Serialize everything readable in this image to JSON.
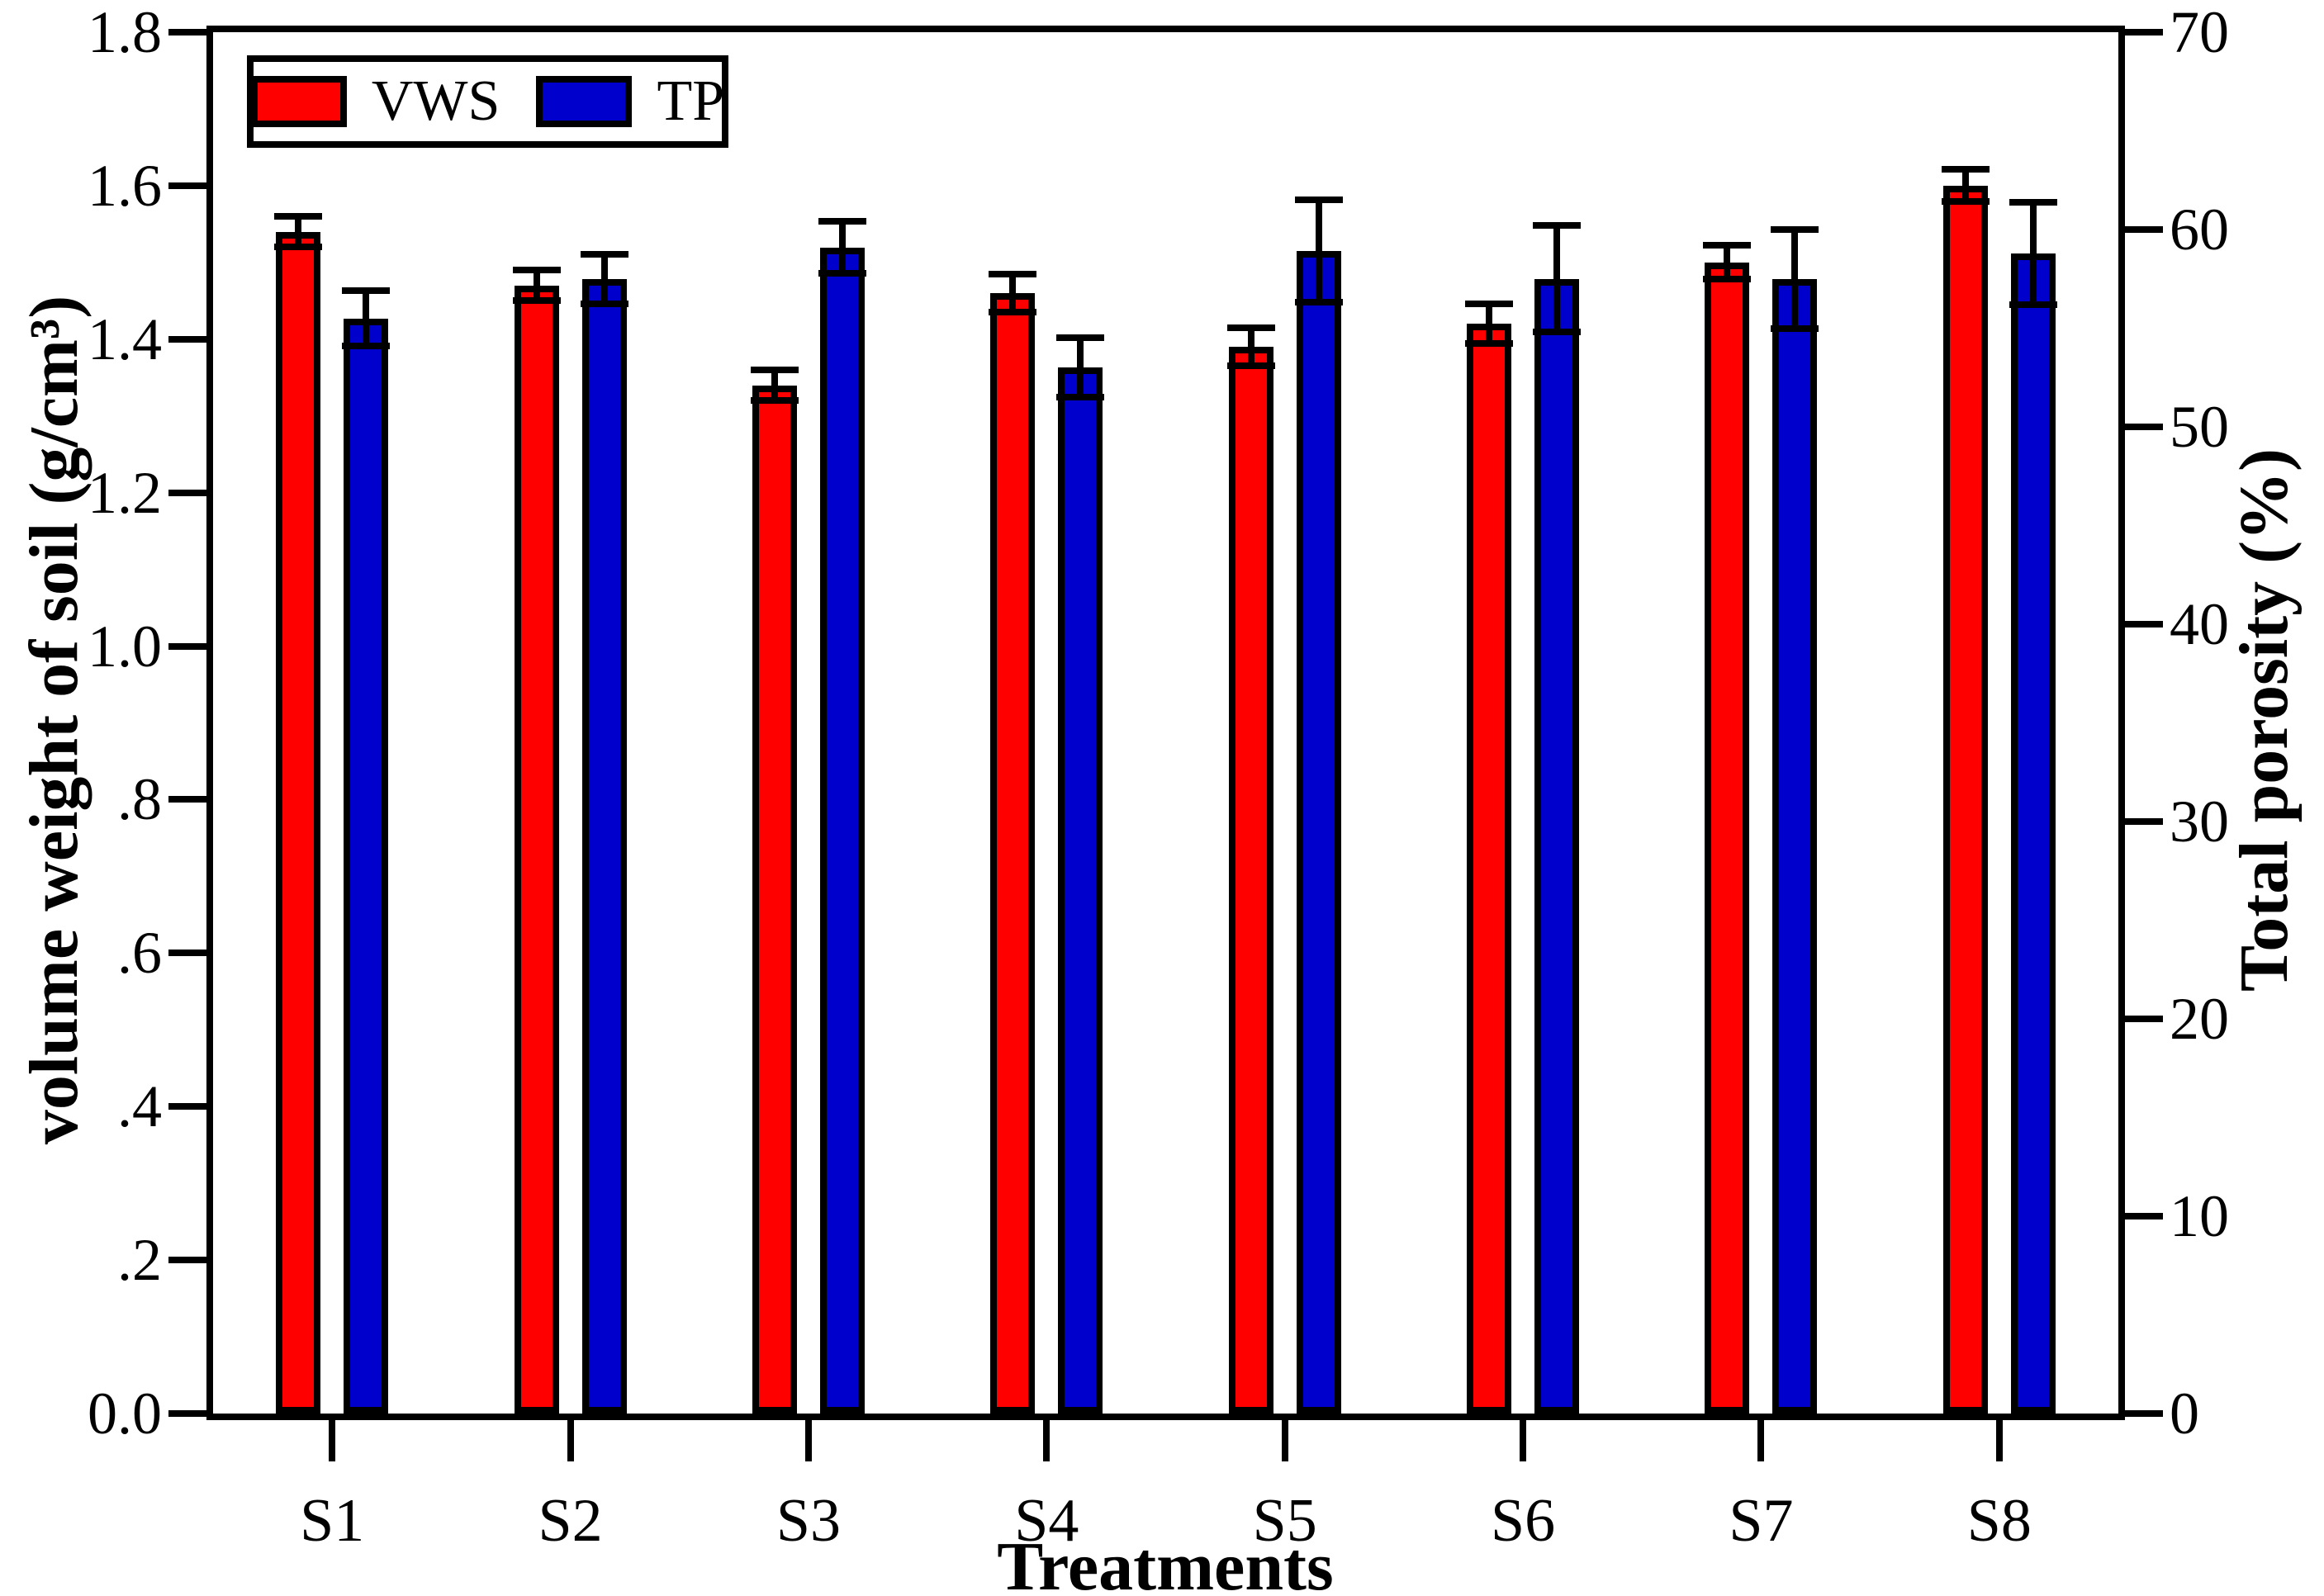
{
  "chart_data": {
    "type": "bar",
    "title": "",
    "categories": [
      "S1",
      "S2",
      "S3",
      "S4",
      "S5",
      "S6",
      "S7",
      "S8"
    ],
    "series": [
      {
        "name": "VWS",
        "axis": "left",
        "unit": "g/cm3",
        "color": "#ff0000",
        "values": [
          1.54,
          1.47,
          1.34,
          1.46,
          1.39,
          1.42,
          1.5,
          1.6
        ],
        "errors": [
          0.02,
          0.02,
          0.02,
          0.025,
          0.025,
          0.026,
          0.022,
          0.021
        ]
      },
      {
        "name": "TP",
        "axis": "right",
        "unit": "%",
        "color": "#0000cc",
        "values": [
          55.5,
          57.5,
          59.1,
          53.0,
          58.9,
          57.5,
          57.5,
          58.8
        ],
        "errors": [
          1.4,
          1.25,
          1.3,
          1.5,
          2.6,
          2.7,
          2.5,
          2.6
        ]
      }
    ],
    "xlabel": "Treatments",
    "ylabel_left": "volume weight of soil (g/cm³)",
    "ylabel_right": "Total porosity (%)",
    "ylim_left": [
      0,
      1.8
    ],
    "ylim_right": [
      0,
      70
    ],
    "ytick_step_left": 0.2,
    "ytick_step_right": 10,
    "yticks_left_labels": [
      "1.8",
      "1.6",
      "1.4",
      "1.2",
      "1.0",
      ".8",
      ".6",
      ".4",
      ".2",
      "0.0"
    ],
    "yticks_right_labels": [
      "70",
      "60",
      "50",
      "40",
      "30",
      "20",
      "10",
      "0"
    ],
    "grid": false,
    "legend_position": "top-left"
  },
  "legend": {
    "items": [
      {
        "label": "VWS",
        "color": "#ff0000"
      },
      {
        "label": "TP",
        "color": "#0000cc"
      }
    ]
  },
  "colors": {
    "vws_bar": "#ff0000",
    "tp_bar": "#0000cc",
    "axis": "#000000",
    "background": "#ffffff"
  }
}
